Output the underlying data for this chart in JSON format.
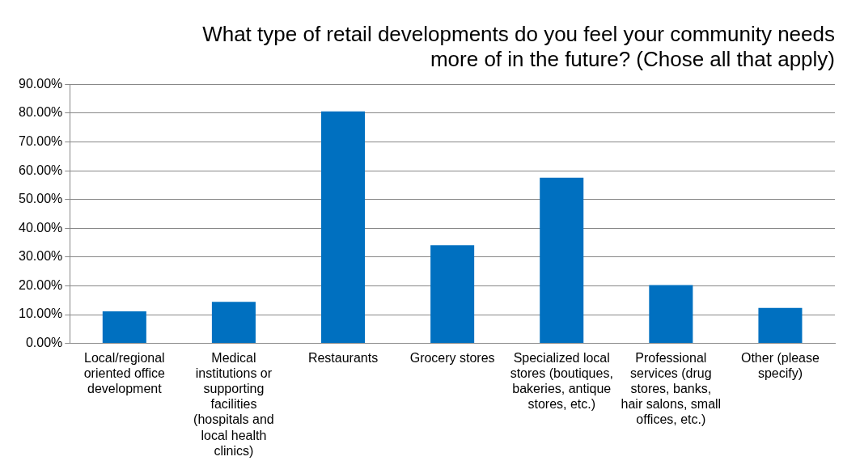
{
  "chart_data": {
    "type": "bar",
    "title": "What type of retail developments do you feel your community needs more of in the future? (Chose all that apply)",
    "categories": [
      "Local/regional oriented office development",
      "Medical institutions or supporting facilities (hospitals and local health clinics)",
      "Restaurants",
      "Grocery stores",
      "Specialized local stores (boutiques, bakeries, antique stores, etc.)",
      "Professional services (drug stores, banks, hair salons, small offices, etc.)",
      "Other (please specify)"
    ],
    "values": [
      11.1,
      14.4,
      80.6,
      34.1,
      57.6,
      20.3,
      12.3
    ],
    "color": "#0070c0",
    "ylim": [
      0,
      90
    ],
    "yticks": [
      {
        "value": 0,
        "label": "0.00%"
      },
      {
        "value": 10,
        "label": "10.00%"
      },
      {
        "value": 20,
        "label": "20.00%"
      },
      {
        "value": 30,
        "label": "30.00%"
      },
      {
        "value": 40,
        "label": "40.00%"
      },
      {
        "value": 50,
        "label": "50.00%"
      },
      {
        "value": 60,
        "label": "60.00%"
      },
      {
        "value": 70,
        "label": "70.00%"
      },
      {
        "value": 80,
        "label": "80.00%"
      },
      {
        "value": 90,
        "label": "90.00%"
      }
    ],
    "grid": "y"
  }
}
